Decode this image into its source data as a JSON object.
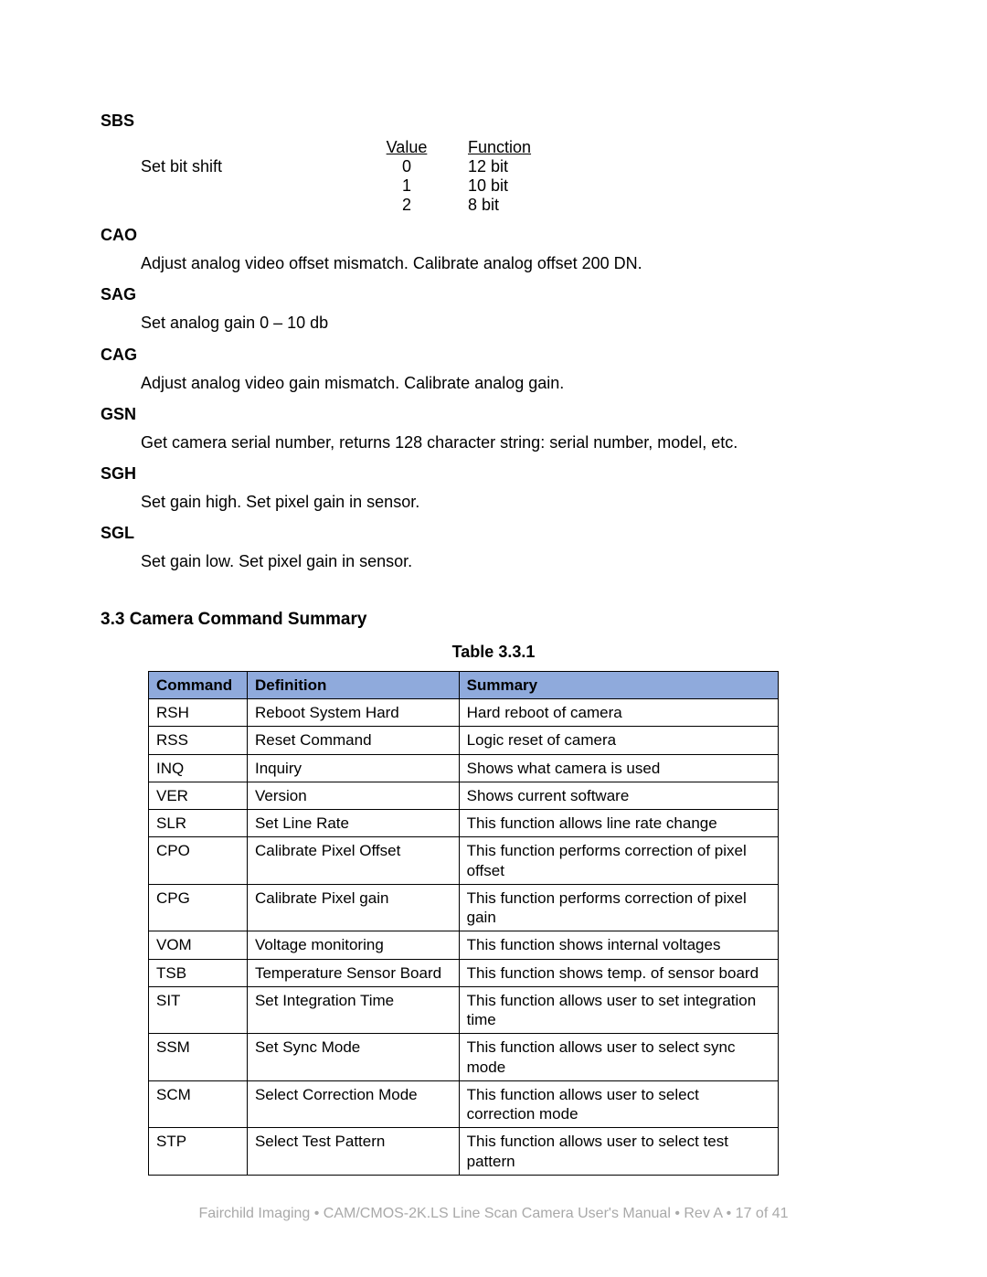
{
  "colors": {
    "page_bg": "#ffffff",
    "text": "#000000",
    "table_header_bg": "#8faadc",
    "table_border": "#000000",
    "footer_text": "#a9a9a9"
  },
  "typography": {
    "body_fontsize_pt": 13,
    "heading_fontsize_pt": 14,
    "font_family": "Arial"
  },
  "sbs": {
    "label": "SBS",
    "param_label": "Set  bit shift",
    "headers": {
      "value": "Value",
      "function": "Function"
    },
    "rows": [
      {
        "value": "0",
        "function": "12 bit"
      },
      {
        "value": "1",
        "function": "10 bit"
      },
      {
        "value": "2",
        "function": "8 bit"
      }
    ]
  },
  "definitions": [
    {
      "label": "CAO",
      "body": "Adjust analog video offset mismatch.  Calibrate analog offset  200 DN."
    },
    {
      "label": "SAG",
      "body": "Set analog gain   0 – 10 db"
    },
    {
      "label": "CAG",
      "body": "Adjust analog video gain mismatch.  Calibrate analog gain."
    },
    {
      "label": "GSN",
      "body": "Get camera serial number, returns 128 character string:  serial number, model, etc."
    },
    {
      "label": "SGH",
      "body": "Set gain high.  Set pixel gain in sensor."
    },
    {
      "label": "SGL",
      "body": "Set gain low.  Set pixel gain in sensor."
    }
  ],
  "section_heading": "3.3  Camera Command Summary",
  "table_caption": "Table 3.3.1",
  "table": {
    "headers": {
      "command": "Command",
      "definition": "Definition",
      "summary": "Summary"
    },
    "rows": [
      {
        "command": "RSH",
        "definition": "Reboot System Hard",
        "summary": "Hard reboot of camera"
      },
      {
        "command": "RSS",
        "definition": "Reset Command",
        "summary": "Logic reset of camera"
      },
      {
        "command": "INQ",
        "definition": "Inquiry",
        "summary": "Shows what camera is used"
      },
      {
        "command": "VER",
        "definition": "Version",
        "summary": "Shows current software"
      },
      {
        "command": "SLR",
        "definition": "Set Line Rate",
        "summary": "This function allows line rate change"
      },
      {
        "command": "CPO",
        "definition": "Calibrate Pixel Offset",
        "summary": "This function performs correction of pixel offset"
      },
      {
        "command": "CPG",
        "definition": "Calibrate Pixel gain",
        "summary": "This function performs correction of pixel gain"
      },
      {
        "command": "VOM",
        "definition": "Voltage monitoring",
        "summary": "This function shows internal voltages"
      },
      {
        "command": "TSB",
        "definition": "Temperature Sensor Board",
        "summary": "This function shows temp. of sensor board"
      },
      {
        "command": "SIT",
        "definition": "Set Integration Time",
        "summary": "This function allows user to set integration time"
      },
      {
        "command": "SSM",
        "definition": "Set Sync Mode",
        "summary": "This function allows user to select sync mode"
      },
      {
        "command": "SCM",
        "definition": "Select Correction Mode",
        "summary": "This function allows user to select correction mode"
      },
      {
        "command": "STP",
        "definition": "Select Test Pattern",
        "summary": "This function allows user to select test pattern"
      }
    ]
  },
  "footer": "Fairchild Imaging • CAM/CMOS-2K.LS Line Scan Camera User's Manual • Rev A • 17 of 41"
}
